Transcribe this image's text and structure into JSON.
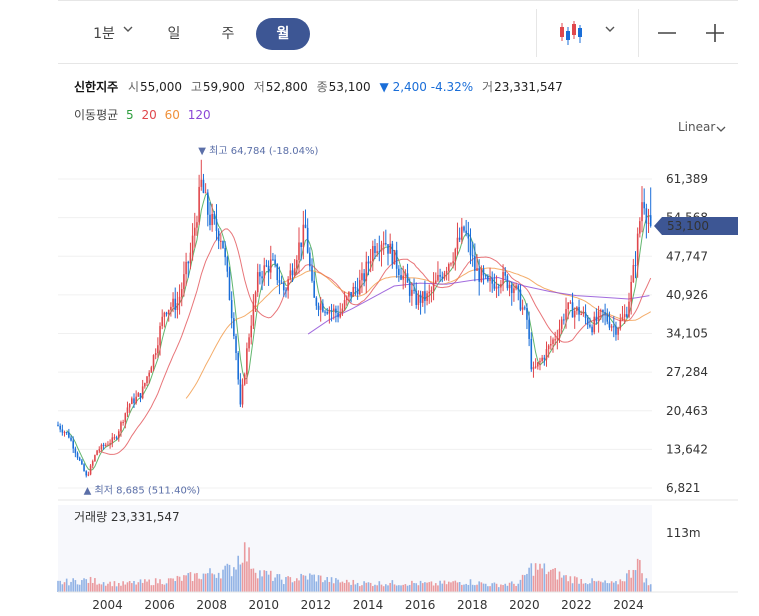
{
  "toolbar": {
    "tabs": [
      {
        "label": "1분",
        "active": false
      },
      {
        "label": "일",
        "active": false
      },
      {
        "label": "주",
        "active": false
      },
      {
        "label": "월",
        "active": true
      }
    ],
    "chart_type_icon": "candlestick-icon",
    "zoom_out_icon": "minus-icon",
    "zoom_in_icon": "plus-icon"
  },
  "quote": {
    "name": "신한지주",
    "open_label": "시",
    "open": "55,000",
    "high_label": "고",
    "high": "59,900",
    "low_label": "저",
    "low": "52,800",
    "close_label": "종",
    "close": "53,100",
    "change_arrow": "▼",
    "change": "2,400",
    "change_pct": "-4.32%",
    "volume_label": "거",
    "volume": "23,331,547"
  },
  "moving_average": {
    "label": "이동평균",
    "periods": [
      {
        "value": "5",
        "color": "#2e9e3e"
      },
      {
        "value": "20",
        "color": "#e0474c"
      },
      {
        "value": "60",
        "color": "#f0913a"
      },
      {
        "value": "120",
        "color": "#8b47d6"
      }
    ]
  },
  "scale_mode": "Linear",
  "colors": {
    "up": "#e0474c",
    "down": "#1a6ed8",
    "accent": "#3d5694",
    "annotation": "#5b6fa8"
  },
  "chart_data": {
    "type": "candlestick",
    "interval": "monthly",
    "x_range": [
      2002.1,
      2024.9
    ],
    "y_range": [
      6821,
      66000
    ],
    "y_ticks": [
      "61,389",
      "54,568",
      "47,747",
      "40,926",
      "34,105",
      "27,284",
      "20,463",
      "13,642",
      "6,821"
    ],
    "x_ticks": [
      "2004",
      "2006",
      "2008",
      "2010",
      "2012",
      "2014",
      "2016",
      "2018",
      "2020",
      "2022",
      "2024"
    ],
    "last_price_tag": "53,100",
    "high_annotation": "최고 64,784 (-18.04%)",
    "low_annotation": "최저 8,685 (511.40%)",
    "high": {
      "x": 2007.6,
      "value": 64784
    },
    "low": {
      "x": 2003.2,
      "value": 8685
    },
    "price_anchors": [
      [
        2002.1,
        17800
      ],
      [
        2002.5,
        16200
      ],
      [
        2003.2,
        8685
      ],
      [
        2003.6,
        13500
      ],
      [
        2004.3,
        15600
      ],
      [
        2004.8,
        21500
      ],
      [
        2005.3,
        23500
      ],
      [
        2005.8,
        30500
      ],
      [
        2006.2,
        38500
      ],
      [
        2006.7,
        39500
      ],
      [
        2007.2,
        48500
      ],
      [
        2007.6,
        60500
      ],
      [
        2007.9,
        54500
      ],
      [
        2008.4,
        51000
      ],
      [
        2008.9,
        33000
      ],
      [
        2009.1,
        21000
      ],
      [
        2009.4,
        33000
      ],
      [
        2009.8,
        44500
      ],
      [
        2010.3,
        46500
      ],
      [
        2010.8,
        41500
      ],
      [
        2011.3,
        49000
      ],
      [
        2011.6,
        52500
      ],
      [
        2011.9,
        40000
      ],
      [
        2012.5,
        38500
      ],
      [
        2012.9,
        37500
      ],
      [
        2013.3,
        41000
      ],
      [
        2013.8,
        43500
      ],
      [
        2014.2,
        49500
      ],
      [
        2014.6,
        51000
      ],
      [
        2015.2,
        45500
      ],
      [
        2015.8,
        40000
      ],
      [
        2016.3,
        40500
      ],
      [
        2016.8,
        44500
      ],
      [
        2017.3,
        48500
      ],
      [
        2017.7,
        52500
      ],
      [
        2018.1,
        45500
      ],
      [
        2018.6,
        42500
      ],
      [
        2019.1,
        44000
      ],
      [
        2019.6,
        42500
      ],
      [
        2020.1,
        36500
      ],
      [
        2020.3,
        27000
      ],
      [
        2020.8,
        30500
      ],
      [
        2021.3,
        34500
      ],
      [
        2021.6,
        38500
      ],
      [
        2022.1,
        38000
      ],
      [
        2022.6,
        35500
      ],
      [
        2023.0,
        37500
      ],
      [
        2023.5,
        35000
      ],
      [
        2023.9,
        37500
      ],
      [
        2024.1,
        42500
      ],
      [
        2024.3,
        48500
      ],
      [
        2024.55,
        59000
      ],
      [
        2024.7,
        55000
      ],
      [
        2024.8,
        53100
      ]
    ],
    "ma120_anchors": [
      [
        2011.7,
        34000
      ],
      [
        2012.5,
        36500
      ],
      [
        2013.4,
        38500
      ],
      [
        2014.2,
        40500
      ],
      [
        2015.0,
        42500
      ],
      [
        2016.0,
        43000
      ],
      [
        2017.0,
        42800
      ],
      [
        2018.0,
        43500
      ],
      [
        2019.0,
        44000
      ],
      [
        2020.0,
        42500
      ],
      [
        2021.0,
        41500
      ],
      [
        2022.0,
        40800
      ],
      [
        2023.0,
        40500
      ],
      [
        2024.0,
        40200
      ],
      [
        2024.8,
        40800
      ]
    ],
    "volume_label": "거래량",
    "volume_value": "23,331,547",
    "volume_axis_max": "113m",
    "volume_peaks": [
      [
        2002.1,
        14
      ],
      [
        2003.2,
        18
      ],
      [
        2004.5,
        12
      ],
      [
        2005.5,
        15
      ],
      [
        2006.5,
        18
      ],
      [
        2007.6,
        26
      ],
      [
        2008.8,
        35
      ],
      [
        2009.2,
        66
      ],
      [
        2009.8,
        30
      ],
      [
        2010.8,
        18
      ],
      [
        2011.8,
        24
      ],
      [
        2012.8,
        16
      ],
      [
        2014.0,
        13
      ],
      [
        2015.5,
        14
      ],
      [
        2016.5,
        12
      ],
      [
        2017.8,
        16
      ],
      [
        2018.8,
        11
      ],
      [
        2019.8,
        13
      ],
      [
        2020.3,
        38
      ],
      [
        2020.8,
        34
      ],
      [
        2021.6,
        22
      ],
      [
        2022.5,
        16
      ],
      [
        2023.5,
        12
      ],
      [
        2024.1,
        30
      ],
      [
        2024.3,
        52
      ],
      [
        2024.6,
        22
      ],
      [
        2024.8,
        10
      ]
    ]
  }
}
